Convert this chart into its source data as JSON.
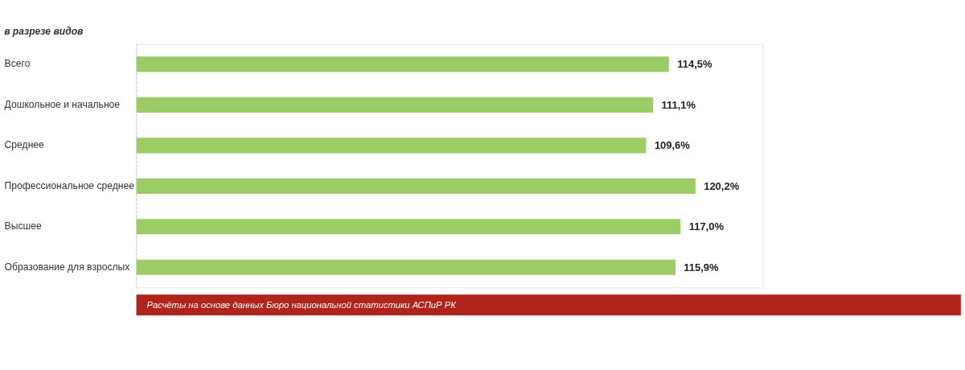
{
  "chart_data": {
    "type": "bar",
    "orientation": "horizontal",
    "title": "в разрезе видов",
    "categories": [
      "Всего",
      "Дошкольное и начальное",
      "Среднее",
      "Профессиональное среднее",
      "Высшее",
      "Образование для взрослых"
    ],
    "values": [
      114.5,
      111.1,
      109.6,
      120.2,
      117.0,
      115.9
    ],
    "value_labels": [
      "114,5%",
      "111,1%",
      "109,6%",
      "120,2%",
      "117,0%",
      "115,9%"
    ],
    "color": "#9ccc65",
    "tick_labels": "y",
    "annotations": [
      "Расчёты на основе данных Бюро национальной статистики АСПиР РК"
    ]
  }
}
